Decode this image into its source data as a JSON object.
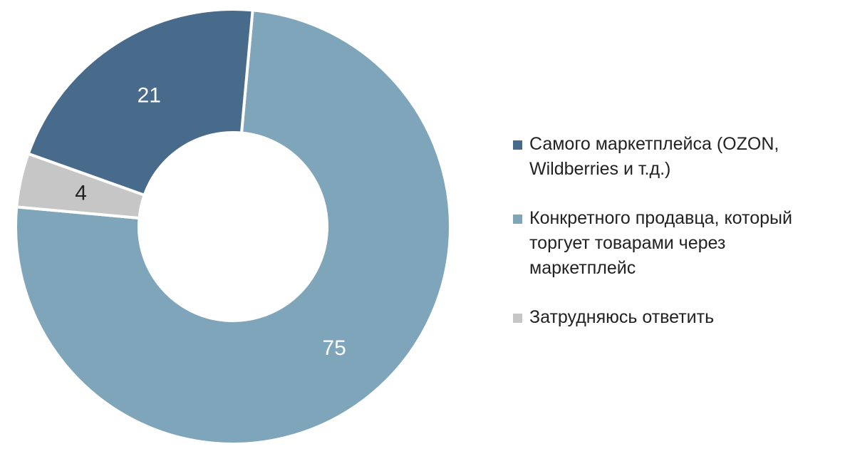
{
  "chart_data": {
    "type": "pie",
    "donut": true,
    "title": "",
    "legend_position": "right",
    "slices": [
      {
        "name": "Конкретного продавца, который торгует товарами через маркетплейс",
        "value": 75,
        "label": "75",
        "color": "#7ea5ba",
        "label_color": "#ffffff"
      },
      {
        "name": "Затрудняюсь ответить",
        "value": 4,
        "label": "4",
        "color": "#c6c6c6",
        "label_color": "#222222"
      },
      {
        "name": "Самого маркетплейса (OZON, Wildberries и т.д.)",
        "value": 21,
        "label": "21",
        "color": "#486b8c",
        "label_color": "#ffffff"
      }
    ],
    "legend": [
      {
        "lines": [
          "Самого маркетплейса (OZON,",
          "Wildberries и т.д.)"
        ],
        "color": "#486b8c"
      },
      {
        "lines": [
          "Конкретного продавца, который",
          "торгует товарами через",
          "маркетплейс"
        ],
        "color": "#7ea5ba"
      },
      {
        "lines": [
          "Затрудняюсь ответить"
        ],
        "color": "#c6c6c6"
      }
    ]
  }
}
